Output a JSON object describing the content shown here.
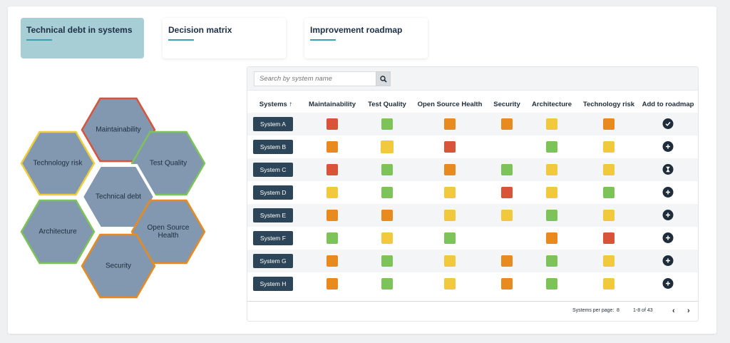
{
  "tabs": [
    {
      "label": "Technical debt in systems",
      "active": true
    },
    {
      "label": "Decision matrix",
      "active": false
    },
    {
      "label": "Improvement roadmap",
      "active": false
    }
  ],
  "hexagons": [
    {
      "label": "Maintainability",
      "border": "#d9533a"
    },
    {
      "label": "Technology risk",
      "border": "#eccd3a"
    },
    {
      "label": "Test Quality",
      "border": "#7ec25a"
    },
    {
      "label": "Technical debt",
      "border": "#ffffff"
    },
    {
      "label": "Architecture",
      "border": "#7ec25a"
    },
    {
      "label": "Open Source Health",
      "border": "#e88a1e"
    },
    {
      "label": "Security",
      "border": "#e88a1e"
    }
  ],
  "search": {
    "placeholder": "Search by system name",
    "icon": "search-icon"
  },
  "columns": [
    "Systems ↑",
    "Maintainability",
    "Test Quality",
    "Open Source Health",
    "Security",
    "Architecture",
    "Technology risk",
    "Add to roadmap"
  ],
  "colors": {
    "red": "#d9533a",
    "orange": "#e88a1e",
    "yellow": "#f0c93e",
    "green": "#7ec25a",
    "dark": "#1f2d3a",
    "hex_fill": "#8298b0",
    "accent": "#3a9fae"
  },
  "rows": [
    {
      "name": "System A",
      "cells": [
        "red",
        "green",
        "orange",
        "orange",
        "yellow",
        "orange"
      ],
      "action": "check"
    },
    {
      "name": "System B",
      "cells": [
        "orange",
        "yellow",
        "red",
        "",
        "green",
        "yellow"
      ],
      "action": "add"
    },
    {
      "name": "System C",
      "cells": [
        "red",
        "green",
        "orange",
        "green",
        "yellow",
        "yellow"
      ],
      "action": "pending"
    },
    {
      "name": "System D",
      "cells": [
        "yellow",
        "green",
        "yellow",
        "red",
        "yellow",
        "green"
      ],
      "action": "add"
    },
    {
      "name": "System E",
      "cells": [
        "orange",
        "orange",
        "yellow",
        "yellow",
        "green",
        "yellow"
      ],
      "action": "add"
    },
    {
      "name": "System F",
      "cells": [
        "green",
        "yellow",
        "green",
        "",
        "orange",
        "red"
      ],
      "action": "add"
    },
    {
      "name": "System G",
      "cells": [
        "orange",
        "green",
        "yellow",
        "orange",
        "green",
        "yellow"
      ],
      "action": "add"
    },
    {
      "name": "System H",
      "cells": [
        "orange",
        "green",
        "yellow",
        "orange",
        "green",
        "yellow"
      ],
      "action": "add"
    }
  ],
  "pagination": {
    "per_page_label": "Systems per page:",
    "per_page": "8",
    "range": "1-8 of 43",
    "prev": "‹",
    "next": "›"
  }
}
